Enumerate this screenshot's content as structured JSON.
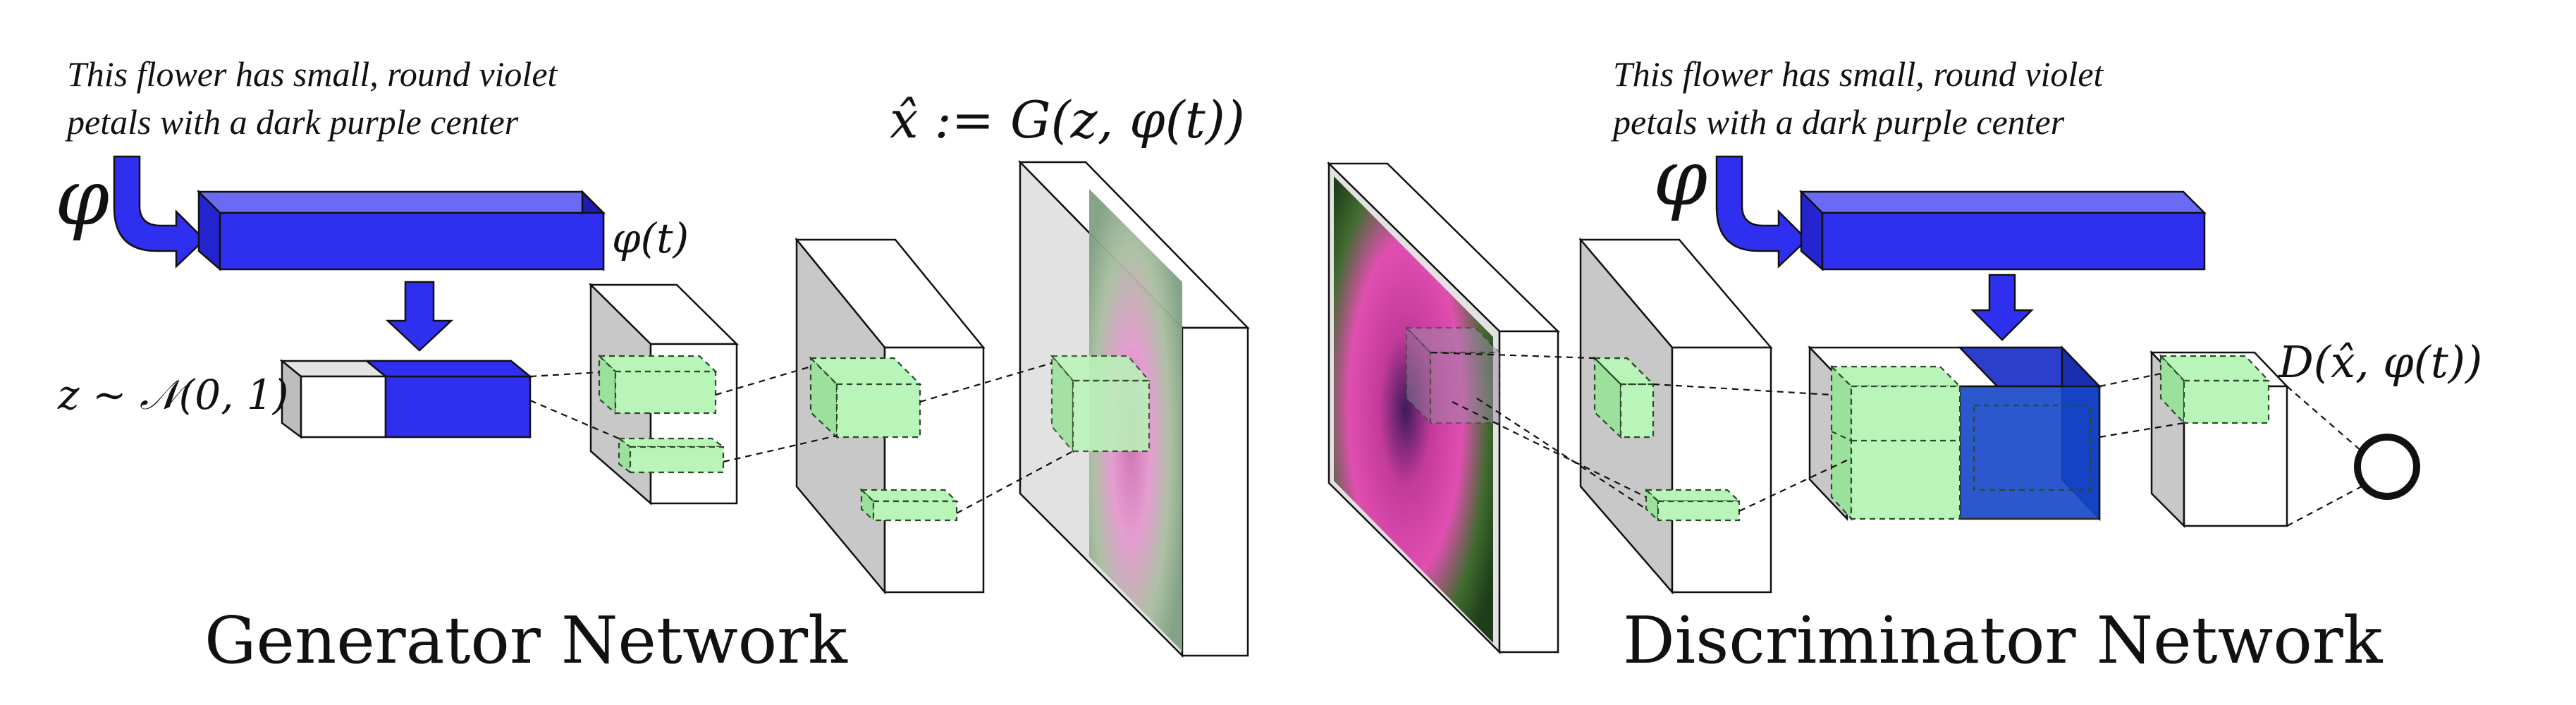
{
  "generator": {
    "caption_line1": "This flower has small, round violet",
    "caption_line2": "petals with a dark purple center",
    "phi_symbol": "φ",
    "embedding_label": "φ(t)",
    "noise_label": "z ∼ 𝒩(0, 1)",
    "output_label": "x̂ := G(z, φ(t))",
    "title": "Generator Network"
  },
  "discriminator": {
    "caption_line1": "This flower has small, round violet",
    "caption_line2": "petals with a dark purple center",
    "phi_symbol": "φ",
    "output_label": "D(x̂, φ(t))",
    "title": "Discriminator Network"
  },
  "colors": {
    "embedding_blue": "#2f2ff0",
    "feature_green": "#b9f5b9",
    "block_gray": "#c8c8c8",
    "real_blue": "#1546c8"
  },
  "icons": {
    "phi_arrow": "curved-down-right-arrow",
    "down_arrow": "thick-down-arrow",
    "output_node": "circle"
  }
}
